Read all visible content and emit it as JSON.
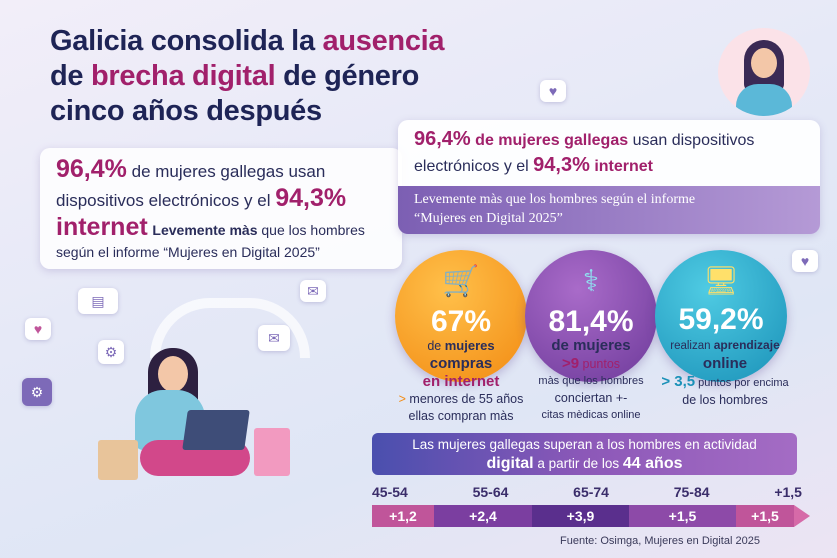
{
  "title": {
    "line1_a": "Galicia consolida la ",
    "line1_b": "ausencia",
    "line2_a": "de ",
    "line2_b": "brecha digital",
    "line2_c": " de género",
    "line3": "cinco años después"
  },
  "left_box": {
    "pct1": "96,4%",
    "t1": " de mujeres gallegas usan",
    "t2": "dispositivos electrónicos y el ",
    "pct2": "94,3%",
    "t3": "internet",
    "t4": "Levemente màs",
    "t5": " que los hombres",
    "t6": "según el informe “Mujeres en Digital 2025”"
  },
  "right_box": {
    "pct1": "96,4%",
    "t1": " de mujeres gallegas",
    "t2": " usan dispositivos",
    "t3": "electrónicos y el ",
    "pct2": "94,3%",
    "t4": " internet",
    "sub1": "Levemente màs que los hombres según el informe",
    "sub2": "“Mujeres en Digital 2025”"
  },
  "stats": [
    {
      "icon": "shopping-cart-icon",
      "color": "#f5a021",
      "value": "67%",
      "l1a": "de ",
      "l1b": "mujeres",
      "l2": "compras",
      "l3": "en internet",
      "l4a": "> ",
      "l4b": "menores de 55 años",
      "l5": "ellas compran màs"
    },
    {
      "icon": "stethoscope-icon",
      "color": "#8a4fb0",
      "value": "81,4%",
      "l1": "de mujeres",
      "l2a": ">9",
      "l2b": " puntos",
      "l3": "màs que los hombres",
      "l4": "conciertan",
      "l4sym": "+-",
      "l5": "citas mèdicas online"
    },
    {
      "icon": "monitor-graduation-icon",
      "color": "#23a9c9",
      "value": "59,2%",
      "l1a": "realizan ",
      "l1b": "aprendizaje",
      "l2": "online",
      "l3a": "> 3,5",
      "l3b": " puntos por encima",
      "l4": "de los hombres"
    }
  ],
  "banner": {
    "l1": "Las mujeres gallegas superan a los hombres en actividad",
    "b": "digital",
    "m": " a partir de los ",
    "n": "44 años"
  },
  "timeline": {
    "ages": [
      "45-54",
      "55-64",
      "65-74",
      "75-84",
      "+1,5"
    ],
    "values": [
      "+1,2",
      "+2,4",
      "+3,9",
      "+1,5",
      "+1,5"
    ],
    "colors": [
      "#c0559a",
      "#7b3ea0",
      "#5a2f8d",
      "#8d4aa8",
      "#c0559a"
    ]
  },
  "source": "Fuente: Osimga, Mujeres en Digital 2025"
}
